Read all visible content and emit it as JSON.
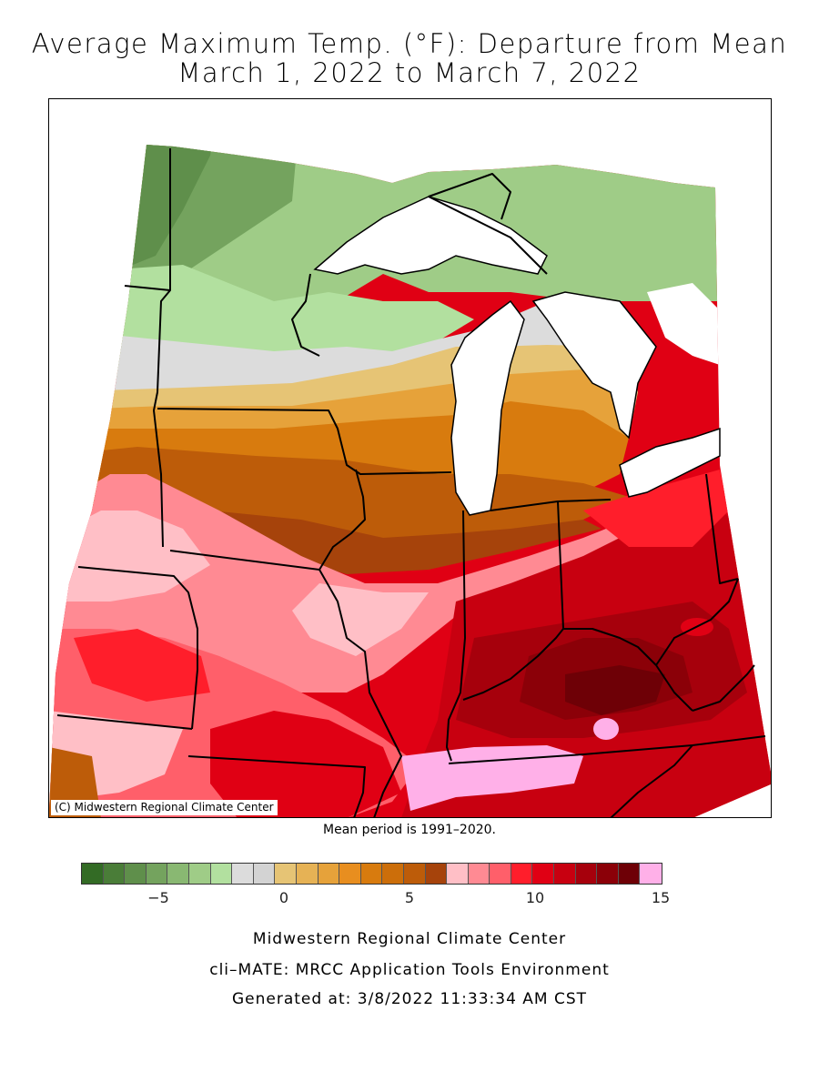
{
  "title_line1": "Average Maximum Temp. (°F): Departure from Mean",
  "title_line2": "March 1, 2022 to March 7, 2022",
  "copyright": "(C) Midwestern Regional Climate Center",
  "mean_period": "Mean period is 1991–2020.",
  "legend": {
    "colors": [
      "#336b25",
      "#4a7d38",
      "#5f8f4b",
      "#74a35e",
      "#89b872",
      "#9fcc87",
      "#b2e09f",
      "#dcdcdc",
      "#d3d3d3",
      "#e6c475",
      "#e6b255",
      "#e6a23a",
      "#e88e1f",
      "#d87b0e",
      "#cc6e0a",
      "#bd5c09",
      "#a6430b",
      "#ffbfc6",
      "#ff8a93",
      "#ff5f6a",
      "#ff1e2b",
      "#e00014",
      "#c80010",
      "#a6000c",
      "#8b0008",
      "#6e0006",
      "#ffb0e8"
    ],
    "ticks": [
      {
        "label": "−5",
        "value": -5
      },
      {
        "label": "0",
        "value": 0
      },
      {
        "label": "5",
        "value": 5
      },
      {
        "label": "10",
        "value": 10
      },
      {
        "label": "15",
        "value": 15
      }
    ]
  },
  "footer": {
    "line1": "Midwestern Regional Climate Center",
    "line2": "cli–MATE: MRCC Application Tools Environment",
    "line3": "Generated at: 3/8/2022 11:33:34 AM CST"
  }
}
